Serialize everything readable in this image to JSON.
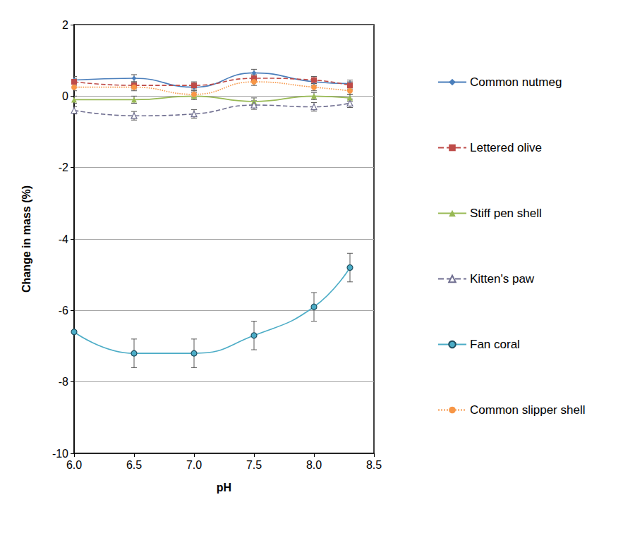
{
  "chart_data": {
    "type": "line",
    "x_label": "pH",
    "y_label": "Change in mass (%)",
    "xlim": [
      6,
      8.5
    ],
    "xticks": [
      {
        "value": 6,
        "label": "6.0"
      },
      {
        "value": 6.5,
        "label": "6.5"
      },
      {
        "value": 7,
        "label": "7.0"
      },
      {
        "value": 7.5,
        "label": "7.5"
      },
      {
        "value": 8,
        "label": "8.0"
      },
      {
        "value": 8.5,
        "label": "8.5"
      }
    ],
    "ylim": [
      -10,
      2
    ],
    "yticks": [
      -10,
      -8,
      -6,
      -4,
      -2,
      0,
      2
    ],
    "grid": true,
    "legend": "right",
    "x": [
      6.0,
      6.5,
      7.0,
      7.5,
      8.0,
      8.3
    ],
    "series": [
      {
        "name": "Common nutmeg",
        "color": "#4a7ebb",
        "marker": "diamond",
        "line_style": "solid",
        "values": [
          0.45,
          0.5,
          0.25,
          0.65,
          0.4,
          0.35
        ],
        "errors": [
          0.1,
          0.1,
          0.1,
          0.1,
          0.1,
          0.1
        ]
      },
      {
        "name": "Lettered olive",
        "color": "#be4b48",
        "marker": "square",
        "line_style": "dashed",
        "values": [
          0.4,
          0.3,
          0.3,
          0.5,
          0.45,
          0.3
        ],
        "errors": [
          0.1,
          0.1,
          0.1,
          0.1,
          0.1,
          0.1
        ]
      },
      {
        "name": "Stiff pen shell",
        "color": "#98b954",
        "marker": "triangle",
        "line_style": "solid",
        "values": [
          -0.1,
          -0.1,
          0.0,
          -0.15,
          0.0,
          -0.05
        ],
        "errors": [
          0.1,
          0.1,
          0.1,
          0.1,
          0.1,
          0.1
        ]
      },
      {
        "name": "Kitten's paw",
        "color": "#6f6e90",
        "marker": "open_triangle",
        "line_style": "dashed",
        "values": [
          -0.4,
          -0.55,
          -0.5,
          -0.25,
          -0.3,
          -0.2
        ],
        "errors": [
          0.1,
          0.12,
          0.12,
          0.12,
          0.12,
          0.12
        ]
      },
      {
        "name": "Fan coral",
        "color": "#4bacc6",
        "marker": "circle",
        "line_style": "solid",
        "values": [
          -6.6,
          -7.2,
          -7.2,
          -6.7,
          -5.9,
          -4.8
        ],
        "errors": [
          null,
          0.4,
          0.4,
          0.4,
          0.4,
          0.4
        ]
      },
      {
        "name": "Common slipper shell",
        "color": "#f79646",
        "marker": "circle",
        "line_style": "dotted",
        "values": [
          0.25,
          0.25,
          0.05,
          0.4,
          0.25,
          0.15
        ],
        "errors": [
          0.1,
          0.1,
          0.1,
          0.1,
          0.1,
          0.1
        ]
      }
    ]
  }
}
